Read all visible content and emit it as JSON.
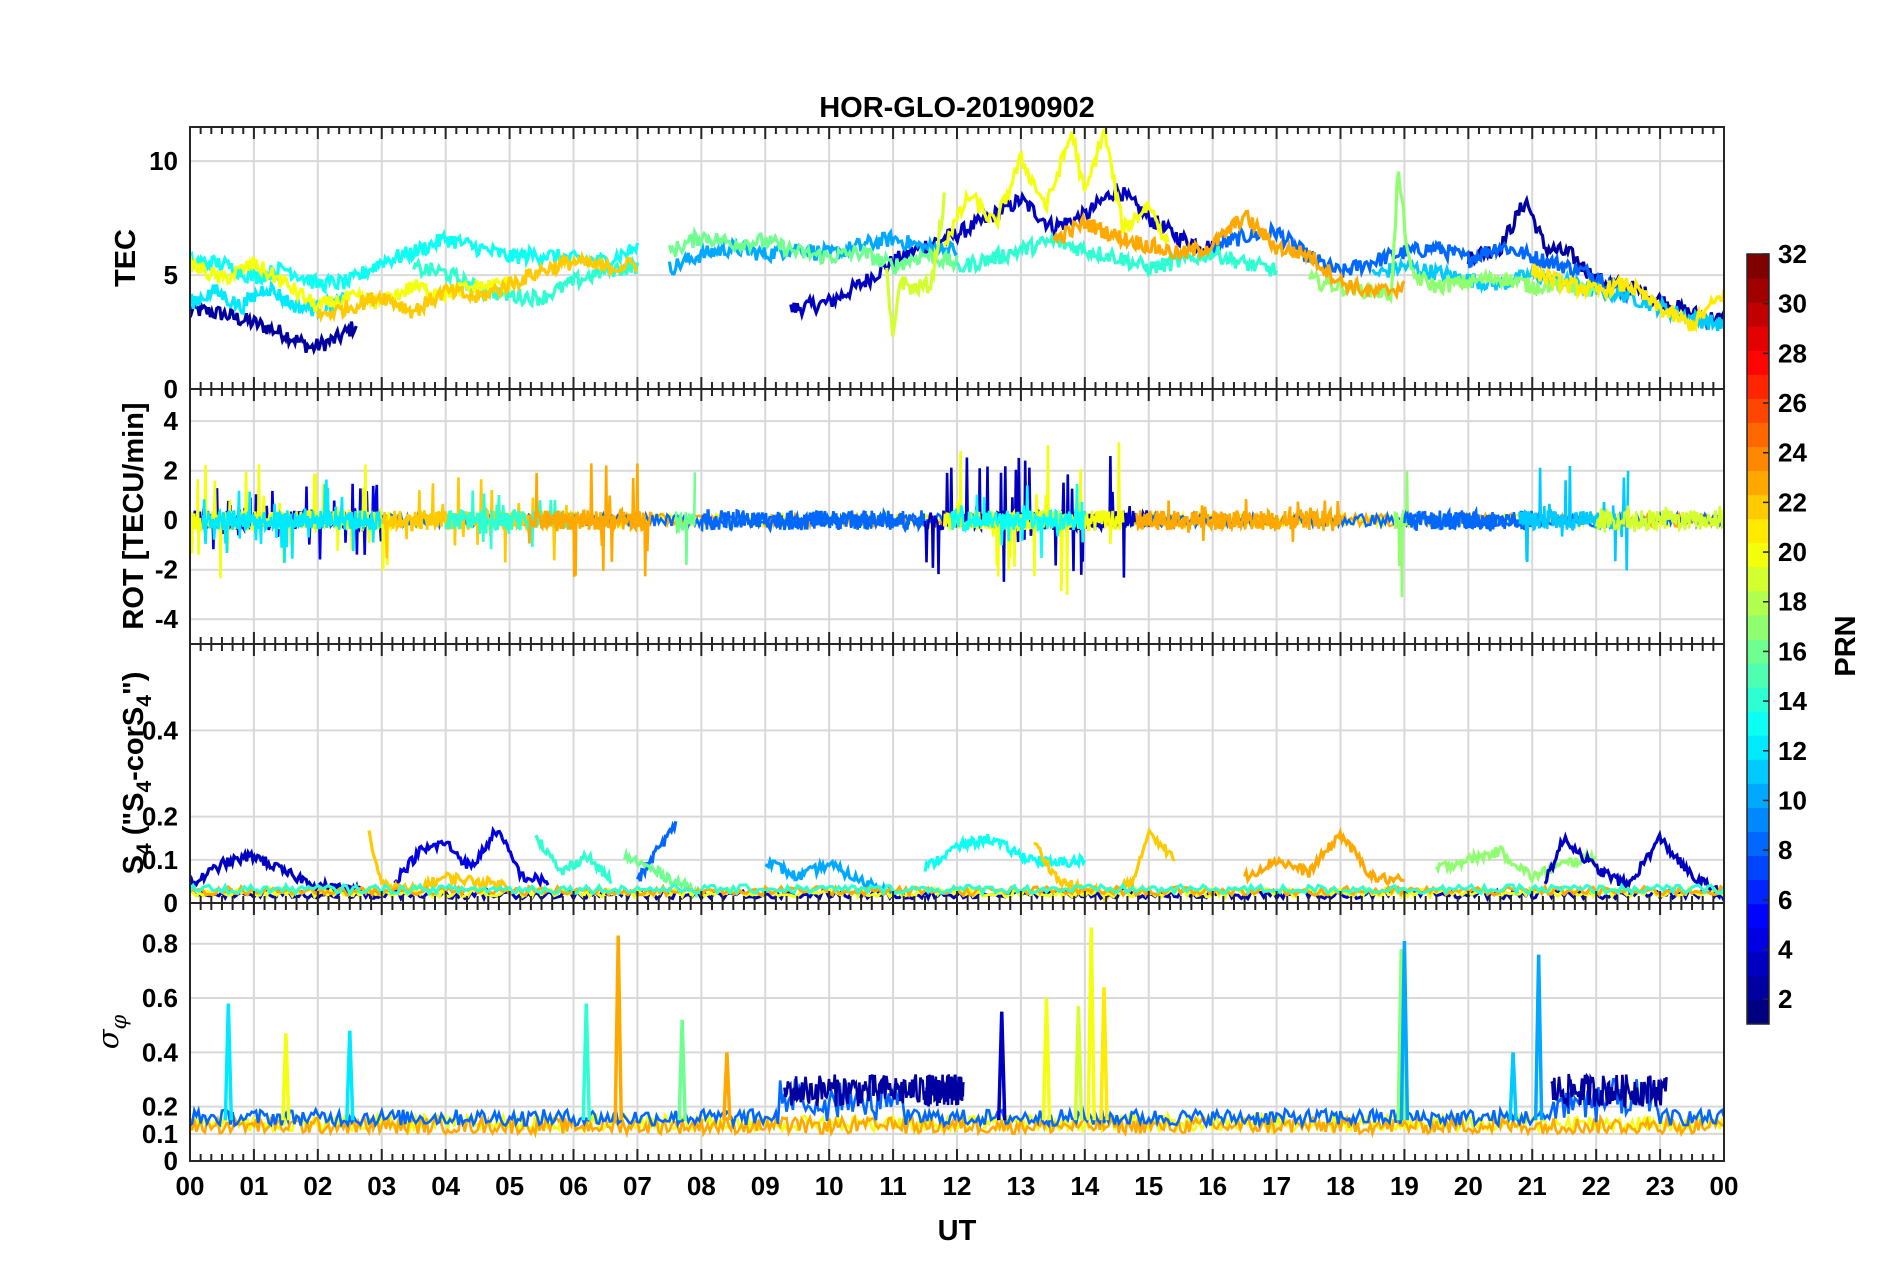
{
  "chart_data": {
    "type": "line",
    "title": "HOR-GLO-20190902",
    "xlabel": "UT",
    "x_ticks": [
      "00",
      "01",
      "02",
      "03",
      "04",
      "05",
      "06",
      "07",
      "08",
      "09",
      "10",
      "11",
      "12",
      "13",
      "14",
      "15",
      "16",
      "17",
      "18",
      "19",
      "20",
      "21",
      "22",
      "23",
      "00"
    ],
    "xlim": [
      0,
      24
    ],
    "grid": true,
    "colormap": "jet",
    "colorbar": {
      "label": "PRN",
      "range": [
        1,
        32
      ],
      "ticks": [
        "2",
        "4",
        "6",
        "8",
        "10",
        "12",
        "14",
        "16",
        "18",
        "20",
        "22",
        "24",
        "26",
        "28",
        "30",
        "32"
      ],
      "placement": "right"
    },
    "panels": [
      {
        "id": "tec",
        "ylabel": "TEC",
        "ylim": [
          0,
          11.5
        ],
        "y_ticks": [
          "0",
          "5",
          "10"
        ],
        "series": [
          {
            "prn": 2,
            "x": [
              0,
              0.5,
              1,
              1.5,
              1.9,
              2.3,
              2.6
            ],
            "y": [
              3.5,
              3.3,
              2.9,
              2.4,
              1.8,
              2.2,
              2.8
            ]
          },
          {
            "prn": 3,
            "x": [
              9.4,
              10,
              10.5,
              11,
              11.5,
              12,
              12.5,
              13,
              13.5,
              14,
              14.5,
              15,
              15.5,
              16
            ],
            "y": [
              3.5,
              3.8,
              4.6,
              5.6,
              6.3,
              6.8,
              7.5,
              8.3,
              7.1,
              7.6,
              8.8,
              7.5,
              6.6,
              6.2
            ]
          },
          {
            "prn": 2,
            "x": [
              20,
              20.5,
              20.9,
              21.2,
              21.6,
              22,
              22.5,
              23,
              23.5,
              24
            ],
            "y": [
              5.8,
              6.2,
              8.3,
              6.2,
              5.9,
              4.8,
              4.5,
              3.9,
              3.3,
              3.0
            ]
          },
          {
            "prn": 8,
            "x": [
              16,
              16.5,
              17,
              17.5,
              18,
              18.5,
              19,
              19.5,
              20,
              20.5,
              21,
              21.5,
              22,
              22.5
            ],
            "y": [
              6.2,
              6.7,
              6.9,
              5.8,
              5.1,
              5.6,
              6.0,
              6.2,
              5.7,
              6.3,
              5.8,
              5.4,
              5.0,
              4.2
            ]
          },
          {
            "prn": 10,
            "x": [
              7.5,
              8,
              8.5,
              9,
              9.5,
              10,
              10.5,
              11,
              11.5,
              12
            ],
            "y": [
              5.3,
              5.9,
              6.2,
              5.9,
              6.2,
              5.9,
              6.3,
              6.6,
              6.2,
              6.1
            ]
          },
          {
            "prn": 11,
            "x": [
              18.5,
              19,
              19.5,
              20,
              20.5,
              21,
              21.5,
              22,
              22.5,
              23,
              23.5,
              24
            ],
            "y": [
              5.0,
              5.4,
              5.1,
              4.8,
              4.6,
              5.0,
              4.7,
              4.3,
              4.1,
              3.6,
              3.1,
              2.8
            ]
          },
          {
            "prn": 13,
            "x": [
              0,
              0.5,
              1,
              1.5,
              2,
              2.5,
              3,
              3.5,
              4,
              4.5,
              5,
              5.5,
              6,
              6.5,
              7
            ],
            "y": [
              5.6,
              5.5,
              4.9,
              5.3,
              4.6,
              4.7,
              5.6,
              6.0,
              6.6,
              6.2,
              5.8,
              5.9,
              5.7,
              5.6,
              6.2
            ]
          },
          {
            "prn": 12,
            "x": [
              0,
              0.4,
              0.8,
              1.2,
              1.6,
              2,
              2.4
            ],
            "y": [
              3.8,
              4.3,
              3.6,
              4.5,
              3.7,
              3.5,
              3.9
            ]
          },
          {
            "prn": 14,
            "x": [
              3.5,
              4,
              4.5,
              5,
              5.5,
              6,
              6.5,
              7
            ],
            "y": [
              5.3,
              5.1,
              4.4,
              4.1,
              4.0,
              4.7,
              5.2,
              5.4
            ]
          },
          {
            "prn": 16,
            "x": [
              7.5,
              8,
              8.5,
              9,
              9.5,
              10,
              10.5,
              11,
              11.5,
              12
            ],
            "y": [
              6.0,
              6.7,
              6.4,
              6.5,
              6.0,
              5.8,
              6.0,
              5.4,
              5.9,
              5.5
            ]
          },
          {
            "prn": 14,
            "x": [
              12,
              12.5,
              13,
              13.5,
              14,
              14.5,
              15,
              15.5,
              16,
              16.5,
              17
            ],
            "y": [
              5.3,
              5.7,
              6.1,
              6.5,
              6.1,
              5.8,
              5.3,
              5.6,
              6.0,
              5.5,
              5.2
            ]
          },
          {
            "prn": 17,
            "x": [
              17.5,
              18,
              18.5,
              18.8,
              18.9,
              19.1,
              19.5,
              20,
              20.5,
              21,
              21.5,
              22
            ],
            "y": [
              4.8,
              4.5,
              4.3,
              4.2,
              9.6,
              5.0,
              4.5,
              4.7,
              4.9,
              4.5,
              4.6,
              4.2
            ]
          },
          {
            "prn": 19,
            "x": [
              10.9,
              11,
              11.1,
              11.3,
              11.6,
              11.8
            ],
            "y": [
              5.0,
              2.0,
              4.8,
              4.4,
              4.6,
              8.3
            ]
          },
          {
            "prn": 20,
            "x": [
              0,
              0.5,
              1,
              1.5,
              2,
              2.5,
              3,
              3.5,
              4,
              4.5,
              5
            ],
            "y": [
              5.5,
              4.8,
              5.5,
              4.6,
              3.6,
              4.0,
              3.8,
              4.5,
              4.2,
              4.5,
              4.6
            ]
          },
          {
            "prn": 20,
            "x": [
              11.8,
              12.2,
              12.6,
              13,
              13.4,
              13.8,
              14,
              14.3,
              14.6,
              15,
              15.3
            ],
            "y": [
              6.4,
              8.5,
              7.2,
              10.1,
              8.0,
              11.3,
              8.5,
              11.4,
              7.0,
              8.1,
              6.4
            ]
          },
          {
            "prn": 21,
            "x": [
              21,
              21.5,
              22,
              22.5,
              23,
              23.5,
              24
            ],
            "y": [
              5.2,
              4.6,
              4.3,
              4.6,
              3.5,
              2.8,
              4.2
            ]
          },
          {
            "prn": 22,
            "x": [
              2,
              2.5,
              3,
              3.5,
              4,
              4.5,
              5,
              5.5,
              6,
              6.5,
              7
            ],
            "y": [
              3.2,
              3.6,
              4.1,
              3.4,
              4.3,
              4.0,
              4.6,
              5.2,
              5.6,
              5.3,
              5.5
            ]
          },
          {
            "prn": 23,
            "x": [
              13.5,
              14,
              14.5,
              15,
              15.5,
              16,
              16.5,
              17,
              17.5,
              18,
              18.5,
              19
            ],
            "y": [
              6.5,
              7.3,
              6.7,
              6.3,
              5.9,
              6.3,
              7.6,
              6.2,
              5.9,
              4.7,
              4.2,
              4.5
            ]
          }
        ]
      },
      {
        "id": "rot",
        "ylabel": "ROT [TECU/min]",
        "ylim": [
          -5,
          5.3
        ],
        "y_ticks": [
          "-4",
          "-2",
          "0",
          "2",
          "4"
        ],
        "bursts": [
          {
            "prn": 4,
            "x0": 0,
            "x1": 3,
            "amp": 1.6
          },
          {
            "prn": 20,
            "x0": 0,
            "x1": 3.2,
            "amp": 2.4
          },
          {
            "prn": 12,
            "x0": 0.2,
            "x1": 3,
            "amp": 1.8
          },
          {
            "prn": 22,
            "x0": 3,
            "x1": 6,
            "amp": 1.9
          },
          {
            "prn": 14,
            "x0": 4,
            "x1": 6,
            "amp": 1.2
          },
          {
            "prn": 23,
            "x0": 5.3,
            "x1": 7.2,
            "amp": 2.4
          },
          {
            "prn": 16,
            "x0": 7.6,
            "x1": 7.9,
            "amp": 2.4
          },
          {
            "prn": 8,
            "x0": 8,
            "x1": 11.5,
            "amp": 0.35
          },
          {
            "prn": 3,
            "x0": 11.5,
            "x1": 15,
            "amp": 2.6
          },
          {
            "prn": 20,
            "x0": 11.8,
            "x1": 14.6,
            "amp": 3.2
          },
          {
            "prn": 13,
            "x0": 11.9,
            "x1": 14,
            "amp": 1.6
          },
          {
            "prn": 23,
            "x0": 14.8,
            "x1": 18,
            "amp": 0.9
          },
          {
            "prn": 17,
            "x0": 18.85,
            "x1": 19.05,
            "amp": 4.5
          },
          {
            "prn": 8,
            "x0": 19,
            "x1": 21,
            "amp": 0.5
          },
          {
            "prn": 11,
            "x0": 20.8,
            "x1": 22.5,
            "amp": 2.2
          },
          {
            "prn": 19,
            "x0": 22,
            "x1": 24,
            "amp": 0.6
          }
        ]
      },
      {
        "id": "s4",
        "ylabel": "S₄ (\"S₄-corS₄\")",
        "ylim": [
          0,
          0.6
        ],
        "y_ticks": [
          "0",
          "0.1",
          "0.2",
          "0.4"
        ],
        "series": [
          {
            "prn": 3,
            "x": [
              0,
              0.5,
              1,
              1.5,
              2,
              2.5,
              3
            ],
            "y": [
              0.04,
              0.09,
              0.11,
              0.07,
              0.04,
              0.03,
              0.02
            ]
          },
          {
            "prn": 4,
            "x": [
              3.2,
              3.6,
              4,
              4.4,
              4.8,
              5.2,
              5.6
            ],
            "y": [
              0.05,
              0.12,
              0.14,
              0.08,
              0.17,
              0.06,
              0.05
            ]
          },
          {
            "prn": 22,
            "x": [
              2.8,
              3,
              3.5,
              4,
              4.5,
              5
            ],
            "y": [
              0.16,
              0.04,
              0.03,
              0.06,
              0.05,
              0.04
            ]
          },
          {
            "prn": 14,
            "x": [
              5.4,
              5.8,
              6.2,
              6.6
            ],
            "y": [
              0.16,
              0.07,
              0.11,
              0.05
            ]
          },
          {
            "prn": 8,
            "x": [
              7,
              7.3,
              7.6
            ],
            "y": [
              0.05,
              0.12,
              0.18
            ]
          },
          {
            "prn": 16,
            "x": [
              6.8,
              7.2,
              7.6,
              8
            ],
            "y": [
              0.11,
              0.08,
              0.05,
              0.02
            ]
          },
          {
            "prn": 10,
            "x": [
              9,
              9.5,
              10,
              10.5,
              11
            ],
            "y": [
              0.1,
              0.06,
              0.09,
              0.05,
              0.03
            ]
          },
          {
            "prn": 13,
            "x": [
              11.5,
              12,
              12.5,
              13,
              13.5,
              14
            ],
            "y": [
              0.08,
              0.13,
              0.15,
              0.11,
              0.09,
              0.1
            ]
          },
          {
            "prn": 22,
            "x": [
              13.2,
              13.6,
              14,
              14.4,
              14.8,
              15,
              15.4
            ],
            "y": [
              0.14,
              0.05,
              0.03,
              0.02,
              0.06,
              0.17,
              0.1
            ]
          },
          {
            "prn": 23,
            "x": [
              16.5,
              17,
              17.5,
              18,
              18.5,
              19
            ],
            "y": [
              0.06,
              0.1,
              0.07,
              0.16,
              0.06,
              0.05
            ]
          },
          {
            "prn": 17,
            "x": [
              19.5,
              20,
              20.5,
              21,
              21.5,
              22
            ],
            "y": [
              0.08,
              0.1,
              0.12,
              0.06,
              0.09,
              0.11
            ]
          },
          {
            "prn": 3,
            "x": [
              21.2,
              21.5,
              22,
              22.5,
              23,
              23.5,
              24
            ],
            "y": [
              0.05,
              0.15,
              0.08,
              0.04,
              0.15,
              0.06,
              0.02
            ]
          }
        ]
      },
      {
        "id": "sigma",
        "ylabel": "σ φ",
        "ylim": [
          0,
          0.95
        ],
        "y_ticks": [
          "0",
          "0.1",
          "0.2",
          "0.4",
          "0.6",
          "0.8"
        ],
        "baseline": [
          {
            "prn": 20,
            "level": 0.14
          },
          {
            "prn": 23,
            "level": 0.13
          },
          {
            "prn": 8,
            "level": 0.16
          }
        ],
        "spikes": [
          {
            "prn": 12,
            "x": 0.6,
            "y": 0.58
          },
          {
            "prn": 20,
            "x": 1.5,
            "y": 0.47
          },
          {
            "prn": 12,
            "x": 2.5,
            "y": 0.48
          },
          {
            "prn": 14,
            "x": 6.2,
            "y": 0.58
          },
          {
            "prn": 23,
            "x": 6.7,
            "y": 0.83
          },
          {
            "prn": 16,
            "x": 7.7,
            "y": 0.52
          },
          {
            "prn": 23,
            "x": 8.4,
            "y": 0.4
          },
          {
            "prn": 3,
            "x": 12.7,
            "y": 0.55
          },
          {
            "prn": 20,
            "x": 13.4,
            "y": 0.6
          },
          {
            "prn": 19,
            "x": 13.9,
            "y": 0.57
          },
          {
            "prn": 20,
            "x": 14.1,
            "y": 0.86
          },
          {
            "prn": 21,
            "x": 14.3,
            "y": 0.64
          },
          {
            "prn": 17,
            "x": 18.95,
            "y": 0.78
          },
          {
            "prn": 10,
            "x": 19.0,
            "y": 0.81
          },
          {
            "prn": 10,
            "x": 21.1,
            "y": 0.76
          },
          {
            "prn": 11,
            "x": 20.7,
            "y": 0.4
          }
        ]
      }
    ]
  }
}
